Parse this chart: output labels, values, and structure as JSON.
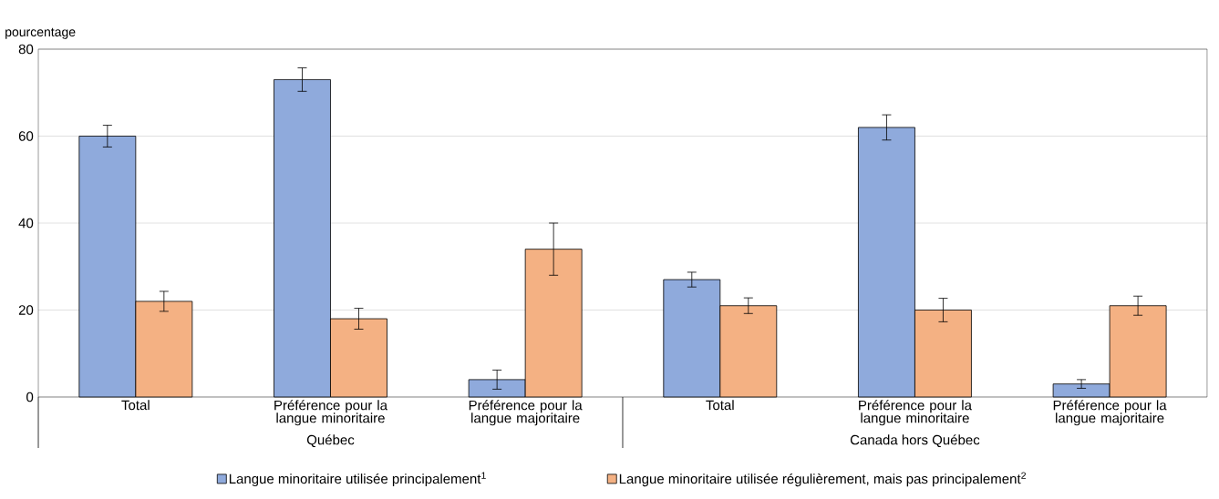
{
  "chart_data": {
    "type": "bar",
    "ylabel": "pourcentage",
    "categories": [
      "Total",
      "Préférence pour la langue minoritaire",
      "Préférence pour la langue majoritaire",
      "Total",
      "Préférence pour la langue minoritaire",
      "Préférence pour la langue majoritaire"
    ],
    "series": [
      {
        "name": "Langue minoritaire utilisée principalement$^{1}$",
        "color": "#8faadc",
        "values": [
          60,
          73,
          4,
          27,
          62,
          3
        ],
        "errors": [
          2.5,
          2.7,
          2.2,
          1.7,
          2.9,
          1
        ]
      },
      {
        "name": "Langue minoritaire utilisée régulièrement, mais pas principalement$^{2}$",
        "color": "#f4b183",
        "values": [
          22,
          18,
          34,
          21,
          20,
          21
        ],
        "errors": [
          2.3,
          2.4,
          6,
          1.8,
          2.7,
          2.2
        ]
      }
    ],
    "annotations": [
      "Québec",
      "Canada hors Québec"
    ],
    "ylim": [
      0,
      80
    ],
    "yticks": [
      0,
      20,
      40,
      60,
      80
    ],
    "grid": "y",
    "legend": "bottom"
  }
}
